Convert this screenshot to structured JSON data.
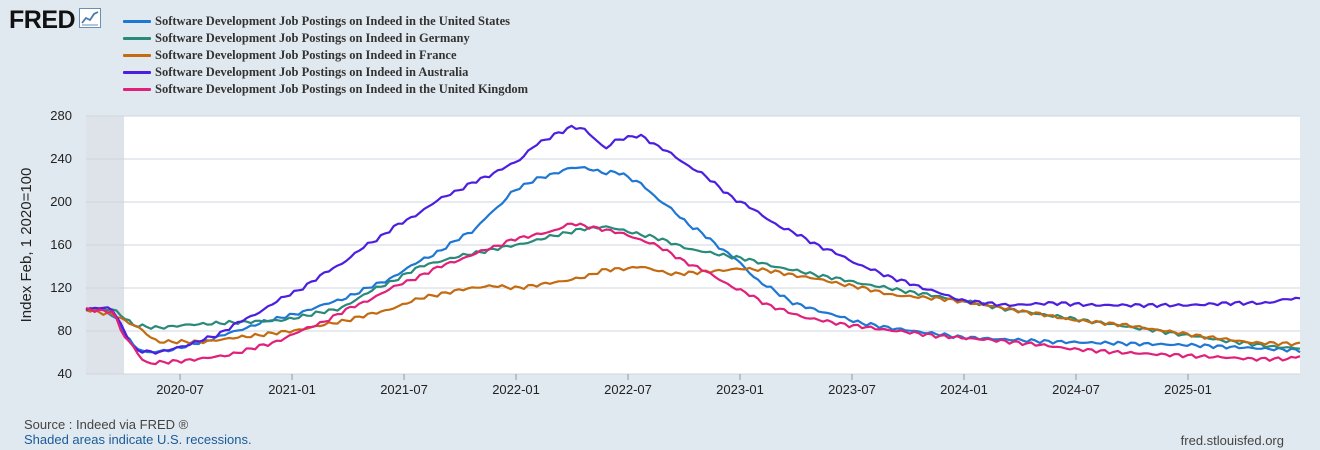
{
  "logo": {
    "text": "FRED",
    "icon": "chart-line-icon"
  },
  "chart_data": {
    "type": "line",
    "title": "",
    "xlabel": "",
    "ylabel": "Index Feb, 1 2020=100",
    "ylim": [
      40,
      280
    ],
    "yticks": [
      40,
      80,
      120,
      160,
      200,
      240,
      280
    ],
    "xrange": [
      2020.08,
      2025.5
    ],
    "xticks": [
      {
        "label": "2020-07",
        "value": 2020.5
      },
      {
        "label": "2021-01",
        "value": 2021.0
      },
      {
        "label": "2021-07",
        "value": 2021.5
      },
      {
        "label": "2022-01",
        "value": 2022.0
      },
      {
        "label": "2022-07",
        "value": 2022.5
      },
      {
        "label": "2023-01",
        "value": 2023.0
      },
      {
        "label": "2023-07",
        "value": 2023.5
      },
      {
        "label": "2024-01",
        "value": 2024.0
      },
      {
        "label": "2024-07",
        "value": 2024.5
      },
      {
        "label": "2025-01",
        "value": 2025.0
      }
    ],
    "recession": {
      "start": 2020.08,
      "end": 2020.25
    },
    "grid": true,
    "series": [
      {
        "name": "Software Development Job Postings on Indeed in the United States",
        "color": "#1f77d4",
        "x": [
          2020.08,
          2020.15,
          2020.2,
          2020.25,
          2020.3,
          2020.35,
          2020.45,
          2020.6,
          2020.75,
          2020.9,
          2021.0,
          2021.2,
          2021.4,
          2021.6,
          2021.8,
          2021.9,
          2022.0,
          2022.1,
          2022.15,
          2022.25,
          2022.3,
          2022.4,
          2022.45,
          2022.55,
          2022.65,
          2022.8,
          2022.95,
          2023.1,
          2023.25,
          2023.4,
          2023.55,
          2023.7,
          2023.85,
          2024.0,
          2024.2,
          2024.4,
          2024.6,
          2024.8,
          2025.0,
          2025.2,
          2025.4,
          2025.5
        ],
        "y": [
          100,
          100,
          95,
          78,
          65,
          60,
          62,
          70,
          80,
          90,
          95,
          108,
          125,
          148,
          172,
          192,
          212,
          222,
          225,
          232,
          232,
          227,
          228,
          218,
          200,
          175,
          152,
          124,
          105,
          96,
          87,
          82,
          78,
          74,
          72,
          70,
          69,
          68,
          67,
          65,
          63,
          62
        ]
      },
      {
        "name": "Software Development Job Postings on Indeed in Germany",
        "color": "#2a8a7a",
        "x": [
          2020.08,
          2020.2,
          2020.3,
          2020.4,
          2020.55,
          2020.75,
          2020.95,
          2021.2,
          2021.4,
          2021.6,
          2021.8,
          2022.0,
          2022.2,
          2022.3,
          2022.4,
          2022.6,
          2022.8,
          2023.0,
          2023.2,
          2023.4,
          2023.6,
          2023.8,
          2024.0,
          2024.2,
          2024.4,
          2024.6,
          2024.8,
          2025.0,
          2025.2,
          2025.4,
          2025.5
        ],
        "y": [
          100,
          100,
          85,
          83,
          86,
          88,
          90,
          100,
          122,
          142,
          152,
          160,
          170,
          175,
          177,
          168,
          155,
          148,
          138,
          130,
          122,
          115,
          108,
          100,
          94,
          88,
          82,
          76,
          70,
          65,
          64
        ]
      },
      {
        "name": "Software Development Job Postings on Indeed in France",
        "color": "#c46a10",
        "x": [
          2020.08,
          2020.2,
          2020.3,
          2020.4,
          2020.6,
          2020.8,
          2021.0,
          2021.2,
          2021.4,
          2021.6,
          2021.8,
          2021.9,
          2022.0,
          2022.2,
          2022.3,
          2022.4,
          2022.5,
          2022.55,
          2022.7,
          2022.9,
          2023.0,
          2023.1,
          2023.3,
          2023.5,
          2023.7,
          2023.9,
          2024.1,
          2024.3,
          2024.5,
          2024.7,
          2024.9,
          2025.1,
          2025.3,
          2025.5
        ],
        "y": [
          100,
          95,
          85,
          70,
          70,
          75,
          80,
          88,
          98,
          112,
          120,
          122,
          120,
          126,
          130,
          137,
          138,
          140,
          133,
          136,
          138,
          137,
          130,
          122,
          113,
          110,
          104,
          97,
          90,
          86,
          80,
          74,
          69,
          68
        ]
      },
      {
        "name": "Software Development Job Postings on Indeed in Australia",
        "color": "#4c1ee0",
        "x": [
          2020.08,
          2020.15,
          2020.2,
          2020.25,
          2020.3,
          2020.4,
          2020.5,
          2020.65,
          2020.8,
          2021.0,
          2021.2,
          2021.35,
          2021.5,
          2021.7,
          2021.85,
          2022.0,
          2022.1,
          2022.2,
          2022.25,
          2022.3,
          2022.4,
          2022.45,
          2022.55,
          2022.65,
          2022.8,
          2023.0,
          2023.2,
          2023.4,
          2023.55,
          2023.7,
          2023.85,
          2024.0,
          2024.2,
          2024.4,
          2024.6,
          2024.8,
          2025.0,
          2025.2,
          2025.35,
          2025.45,
          2025.5
        ],
        "y": [
          100,
          102,
          100,
          80,
          62,
          60,
          65,
          75,
          92,
          115,
          140,
          162,
          182,
          207,
          222,
          237,
          255,
          265,
          270,
          268,
          250,
          258,
          262,
          250,
          230,
          200,
          175,
          155,
          140,
          128,
          118,
          108,
          104,
          106,
          104,
          104,
          104,
          106,
          106,
          110,
          110
        ]
      },
      {
        "name": "Software Development Job Postings on Indeed in the United Kingdom",
        "color": "#e0207a",
        "x": [
          2020.08,
          2020.2,
          2020.25,
          2020.35,
          2020.5,
          2020.7,
          2020.9,
          2021.1,
          2021.3,
          2021.5,
          2021.7,
          2021.9,
          2022.0,
          2022.15,
          2022.25,
          2022.35,
          2022.45,
          2022.6,
          2022.8,
          2023.0,
          2023.15,
          2023.3,
          2023.5,
          2023.7,
          2023.9,
          2024.1,
          2024.3,
          2024.5,
          2024.7,
          2024.9,
          2025.1,
          2025.3,
          2025.45,
          2025.5
        ],
        "y": [
          100,
          98,
          75,
          50,
          52,
          57,
          68,
          85,
          105,
          125,
          143,
          158,
          166,
          172,
          180,
          176,
          172,
          162,
          140,
          118,
          102,
          92,
          85,
          80,
          75,
          72,
          68,
          63,
          60,
          58,
          56,
          54,
          54,
          57
        ]
      }
    ]
  },
  "footer": {
    "source": "Source : Indeed via FRED ®",
    "recession_note": "Shaded areas indicate U.S. recessions.",
    "site": "fred.stlouisfed.org"
  }
}
